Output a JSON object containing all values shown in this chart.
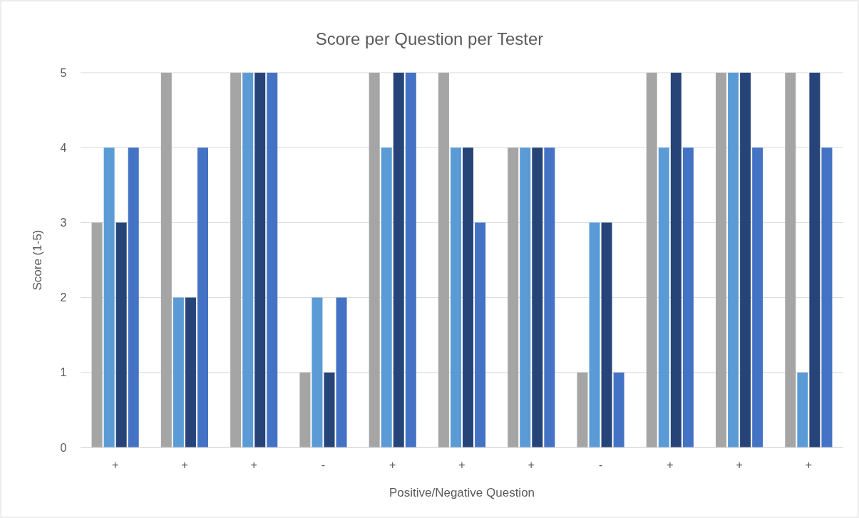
{
  "chart_data": {
    "type": "bar",
    "title": "Score per Question per Tester",
    "xlabel": "Positive/Negative Question",
    "ylabel": "Score (1-5)",
    "categories": [
      "+",
      "+",
      "+",
      "-",
      "+",
      "+",
      "+",
      "-",
      "+",
      "+",
      "+"
    ],
    "series": [
      {
        "color": "#a5a5a5",
        "values": [
          3,
          5,
          5,
          1,
          5,
          5,
          4,
          1,
          5,
          5,
          5
        ]
      },
      {
        "color": "#5b9bd5",
        "values": [
          4,
          2,
          5,
          2,
          4,
          4,
          4,
          3,
          4,
          5,
          1
        ]
      },
      {
        "color": "#264478",
        "values": [
          3,
          2,
          5,
          1,
          5,
          4,
          4,
          3,
          5,
          5,
          5
        ]
      },
      {
        "color": "#4472c4",
        "values": [
          4,
          4,
          5,
          2,
          5,
          3,
          4,
          1,
          4,
          4,
          4
        ]
      }
    ],
    "ylim": [
      0,
      5
    ],
    "yticks": [
      0,
      1,
      2,
      3,
      4,
      5
    ],
    "grid": "y"
  }
}
